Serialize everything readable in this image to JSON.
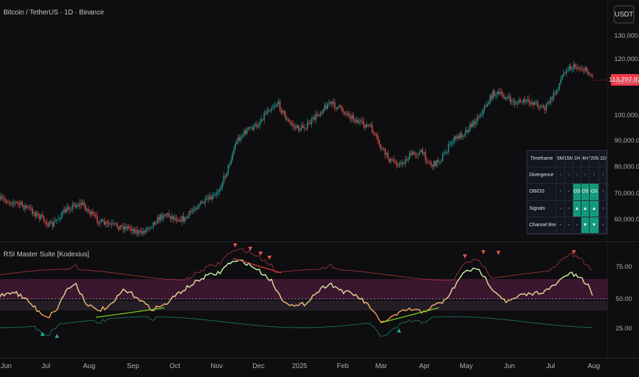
{
  "main_pane": {
    "title": "Bitcoin / TetherUS · 1D · Binance",
    "currency": "USDT",
    "last_price": "113,297.93",
    "price_ticks": [
      "130,000.00",
      "120,000.00",
      "110,000.00",
      "100,000.00",
      "90,000.00",
      "80,000.00",
      "70,000.00",
      "60,000.00"
    ]
  },
  "indicator_pane": {
    "title": "RSI Master Suite [Kodexius]",
    "rsi_ticks": [
      "75.00",
      "50.00",
      "25.00"
    ]
  },
  "time_axis": [
    "Jun",
    "Jul",
    "Aug",
    "Sep",
    "Oct",
    "Nov",
    "Dec",
    "2025",
    "Feb",
    "Mar",
    "Apr",
    "May",
    "Jun",
    "Jul",
    "Aug"
  ],
  "mtf_table": {
    "columns": [
      "Timeframe",
      "5M",
      "15M",
      "1H",
      "4H",
      "720M",
      "1D"
    ],
    "rows": [
      {
        "label": "Divergence",
        "cells": [
          "-",
          "-",
          "-",
          "-",
          "-",
          "-"
        ]
      },
      {
        "label": "OB/OS",
        "cells": [
          "-",
          "-",
          "OS",
          "OS",
          "OS",
          "-"
        ]
      },
      {
        "label": "Signals",
        "cells": [
          "-",
          "-",
          "▲",
          "▲",
          "▲",
          "-"
        ]
      },
      {
        "label": "Channel Breaks",
        "cells": [
          "-",
          "-",
          "-",
          "▼",
          "▼",
          "-"
        ]
      }
    ],
    "highlighted": [
      [
        1,
        2
      ],
      [
        1,
        3
      ],
      [
        1,
        4
      ],
      [
        2,
        2
      ],
      [
        2,
        3
      ],
      [
        2,
        4
      ],
      [
        3,
        3
      ],
      [
        3,
        4
      ]
    ]
  },
  "colors": {
    "background": "#0e0e10",
    "bull": "#26a69a",
    "bear": "#ef5350",
    "table_highlight": "#139a7b",
    "rsi_high": "#a7e3a3",
    "rsi_low": "#f0974a",
    "overbought_zone": "#7a2052",
    "oversold_zone": "#4a1a30"
  },
  "icons": {
    "buy_signal": "green-triangle-up-icon",
    "sell_signal": "red-triangle-down-icon"
  }
}
